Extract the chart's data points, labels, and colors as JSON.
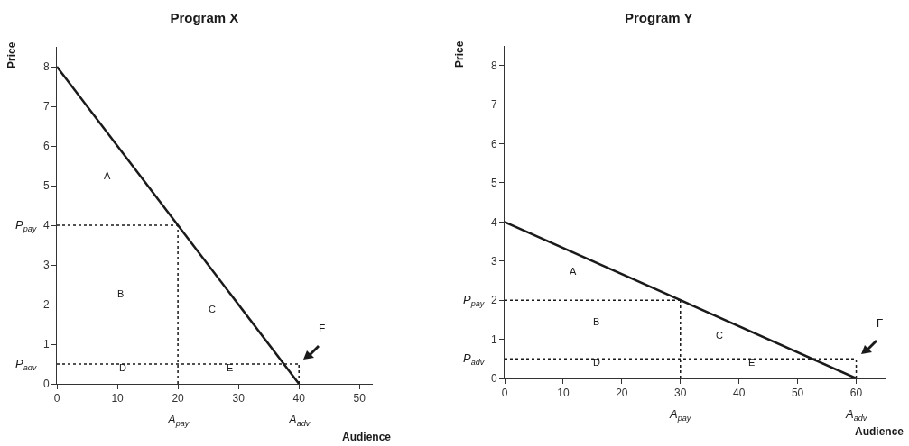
{
  "chart_data": [
    {
      "type": "line",
      "title": "Program X",
      "xlabel": "Audience",
      "ylabel": "Price",
      "xlim": [
        0,
        52.2
      ],
      "ylim": [
        0,
        8.5
      ],
      "xticks": [
        0,
        10,
        20,
        30,
        40,
        50
      ],
      "yticks": [
        0,
        1,
        2,
        3,
        4,
        5,
        6,
        7,
        8
      ],
      "series": [
        {
          "color": "#1a1a1a",
          "x": [
            0,
            40
          ],
          "values": [
            8,
            0
          ],
          "line_style": "solid"
        },
        {
          "color": "#1a1a1a",
          "x": [
            0,
            20
          ],
          "values": [
            4,
            4
          ],
          "line_style": "dashed"
        },
        {
          "color": "#1a1a1a",
          "x": [
            20,
            20
          ],
          "values": [
            0,
            4
          ],
          "line_style": "dashed"
        },
        {
          "color": "#1a1a1a",
          "x": [
            0,
            40
          ],
          "values": [
            0.5,
            0.5
          ],
          "line_style": "dashed"
        },
        {
          "color": "#1a1a1a",
          "x": [
            40,
            40
          ],
          "values": [
            0,
            0.5
          ],
          "line_style": "dashed"
        }
      ],
      "annotations": [
        "A",
        "B",
        "C",
        "D",
        "E",
        "F",
        "P$_{pay}$",
        "P$_{adv}$",
        "A$_{pay}$",
        "A$_{adv}$"
      ]
    },
    {
      "type": "line",
      "title": "Program Y",
      "xlabel": "Audience",
      "ylabel": "Price",
      "xlim": [
        0,
        65
      ],
      "ylim": [
        0,
        8.5
      ],
      "xticks": [
        0,
        10,
        20,
        30,
        40,
        50,
        60
      ],
      "yticks": [
        0,
        1,
        2,
        3,
        4,
        5,
        6,
        7,
        8
      ],
      "series": [
        {
          "color": "#1a1a1a",
          "x": [
            0,
            60
          ],
          "values": [
            4,
            0
          ],
          "line_style": "solid"
        },
        {
          "color": "#1a1a1a",
          "x": [
            0,
            30
          ],
          "values": [
            2,
            2
          ],
          "line_style": "dashed"
        },
        {
          "color": "#1a1a1a",
          "x": [
            30,
            30
          ],
          "values": [
            0,
            2
          ],
          "line_style": "dashed"
        },
        {
          "color": "#1a1a1a",
          "x": [
            0,
            60
          ],
          "values": [
            0.5,
            0.5
          ],
          "line_style": "dashed"
        },
        {
          "color": "#1a1a1a",
          "x": [
            60,
            60
          ],
          "values": [
            0,
            0.5
          ],
          "line_style": "dashed"
        }
      ],
      "annotations": [
        "A",
        "B",
        "C",
        "D",
        "E",
        "F",
        "P$_{pay}$",
        "P$_{adv}$",
        "A$_{pay}$",
        "A$_{adv}$"
      ]
    }
  ]
}
